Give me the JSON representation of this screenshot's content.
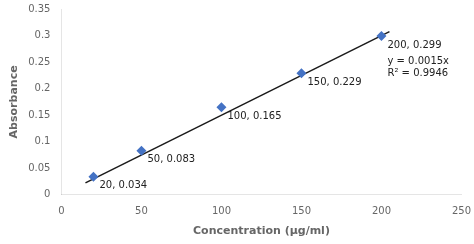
{
  "chart_data": {
    "type": "scatter",
    "xlabel": "Concentration (μg/ml)",
    "ylabel": "Absorbance",
    "series": [
      {
        "type": "scatter",
        "color": "#4472c4",
        "marker": "diamond",
        "x": [
          20,
          50,
          100,
          150,
          200
        ],
        "values": [
          0.034,
          0.083,
          0.165,
          0.229,
          0.299
        ],
        "data_labels": true,
        "value_labels": [
          "20, 0.034",
          "50, 0.083",
          "100, 0.165",
          "150, 0.229",
          "200, 0.299"
        ]
      },
      {
        "type": "line",
        "color": "#1a1a1a",
        "line_style": "solid",
        "x": [
          15,
          205
        ],
        "values": [
          0.0225,
          0.3075
        ]
      }
    ],
    "annotations": [
      "y = 0.0015x",
      "R² = 0.9946"
    ],
    "xlim": [
      0,
      250
    ],
    "ylim": [
      0,
      0.35
    ],
    "xticks": [
      0,
      50,
      100,
      150,
      200,
      250
    ],
    "yticks": [
      0,
      0.05,
      0.1,
      0.15,
      0.2,
      0.25,
      0.3,
      0.35
    ],
    "grid": false
  }
}
